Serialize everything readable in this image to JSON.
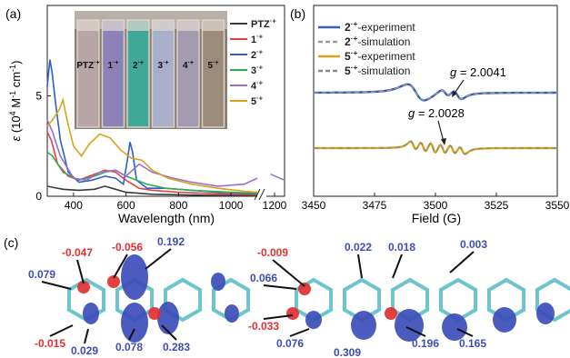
{
  "panels": {
    "a": {
      "label": "(a)",
      "chart_data": {
        "type": "line",
        "xlabel": "Wavelength (nm)",
        "ylabel": "ε (10⁴ M⁻¹ cm⁻¹)",
        "ylabel_parts": {
          "symbol": "ε",
          "rest": " (10",
          "sup1": "4",
          "mid": " M",
          "sup2": "-1",
          "cm": " cm",
          "sup3": "-1",
          "close": ")"
        },
        "xticks": [
          "400",
          "600",
          "800",
          "1000",
          "1200"
        ],
        "yticks": [
          "0",
          "5"
        ],
        "xlim": [
          300,
          1250
        ],
        "ylim": [
          0,
          9.5
        ],
        "axis_break": "after 1100",
        "legend": "top-right",
        "series": [
          {
            "name": "PTZ",
            "color": "#3a3a3a",
            "points": [
              [
                300,
                0.5
              ],
              [
                320,
                0.45
              ],
              [
                360,
                0.35
              ],
              [
                420,
                0.3
              ],
              [
                480,
                0.35
              ],
              [
                520,
                0.5
              ],
              [
                560,
                0.35
              ],
              [
                600,
                0.2
              ],
              [
                700,
                0.1
              ],
              [
                900,
                0.05
              ],
              [
                1100,
                0.03
              ],
              [
                1250,
                0.02
              ]
            ]
          },
          {
            "name": "1",
            "color": "#e84040",
            "points": [
              [
                300,
                3.2
              ],
              [
                315,
                2.8
              ],
              [
                340,
                1.6
              ],
              [
                380,
                1.0
              ],
              [
                420,
                0.8
              ],
              [
                460,
                1.0
              ],
              [
                520,
                1.3
              ],
              [
                560,
                1.2
              ],
              [
                600,
                0.8
              ],
              [
                650,
                0.4
              ],
              [
                700,
                0.3
              ],
              [
                800,
                0.2
              ],
              [
                1000,
                0.1
              ],
              [
                1100,
                0.08
              ],
              [
                1250,
                0.05
              ]
            ]
          },
          {
            "name": "2",
            "color": "#2c5fc9",
            "points": [
              [
                300,
                5.5
              ],
              [
                310,
                6.8
              ],
              [
                318,
                6.2
              ],
              [
                330,
                4.8
              ],
              [
                350,
                2.8
              ],
              [
                380,
                1.2
              ],
              [
                420,
                0.7
              ],
              [
                470,
                0.8
              ],
              [
                520,
                1.0
              ],
              [
                560,
                0.9
              ],
              [
                590,
                0.6
              ],
              [
                605,
                1.8
              ],
              [
                615,
                2.7
              ],
              [
                625,
                2.2
              ],
              [
                640,
                0.8
              ],
              [
                680,
                0.4
              ],
              [
                750,
                0.4
              ],
              [
                850,
                0.3
              ],
              [
                950,
                0.2
              ],
              [
                1050,
                0.15
              ],
              [
                1100,
                0.12
              ],
              [
                1250,
                0.1
              ]
            ]
          },
          {
            "name": "3",
            "color": "#2fae5a",
            "points": [
              [
                300,
                2.2
              ],
              [
                320,
                2.0
              ],
              [
                360,
                1.2
              ],
              [
                420,
                0.8
              ],
              [
                480,
                1.0
              ],
              [
                520,
                1.2
              ],
              [
                560,
                1.3
              ],
              [
                600,
                1.0
              ],
              [
                640,
                0.8
              ],
              [
                680,
                0.6
              ],
              [
                750,
                0.4
              ],
              [
                850,
                0.3
              ],
              [
                1000,
                0.2
              ],
              [
                1100,
                0.15
              ],
              [
                1250,
                0.25
              ]
            ]
          },
          {
            "name": "4",
            "color": "#9b6cd0",
            "points": [
              [
                300,
                3.8
              ],
              [
                320,
                3.2
              ],
              [
                350,
                2.0
              ],
              [
                400,
                0.9
              ],
              [
                450,
                0.8
              ],
              [
                500,
                1.2
              ],
              [
                560,
                1.3
              ],
              [
                600,
                1.0
              ],
              [
                650,
                1.6
              ],
              [
                700,
                1.2
              ],
              [
                780,
                0.9
              ],
              [
                850,
                0.7
              ],
              [
                950,
                0.5
              ],
              [
                1050,
                0.6
              ],
              [
                1100,
                0.9
              ],
              [
                1180,
                1.1
              ],
              [
                1250,
                0.8
              ]
            ]
          },
          {
            "name": "5",
            "color": "#d9a21a",
            "points": [
              [
                300,
                3.5
              ],
              [
                320,
                3.8
              ],
              [
                345,
                4.3
              ],
              [
                360,
                4.8
              ],
              [
                375,
                3.8
              ],
              [
                400,
                2.5
              ],
              [
                430,
                2.0
              ],
              [
                460,
                2.6
              ],
              [
                500,
                3.1
              ],
              [
                540,
                2.9
              ],
              [
                580,
                2.3
              ],
              [
                620,
                1.9
              ],
              [
                660,
                1.8
              ],
              [
                700,
                1.3
              ],
              [
                760,
                0.9
              ],
              [
                850,
                0.6
              ],
              [
                950,
                0.4
              ],
              [
                1050,
                0.25
              ],
              [
                1100,
                0.2
              ],
              [
                1250,
                0.15
              ]
            ]
          }
        ]
      },
      "legend_entries": [
        {
          "base": "PTZ",
          "sup": "·+"
        },
        {
          "base": "1",
          "sup": "·+"
        },
        {
          "base": "2",
          "sup": "·+"
        },
        {
          "base": "3",
          "sup": "·+"
        },
        {
          "base": "4",
          "sup": "·+"
        },
        {
          "base": "5",
          "sup": "·+"
        }
      ],
      "inset_labels": [
        {
          "base": "PTZ",
          "sup": "·+",
          "color": "#b8a5a8"
        },
        {
          "base": "1",
          "sup": "·+",
          "color": "#8d82b8"
        },
        {
          "base": "2",
          "sup": "·+",
          "color": "#3fa896"
        },
        {
          "base": "3",
          "sup": "·+",
          "color": "#a9aec9"
        },
        {
          "base": "4",
          "sup": "·+",
          "color": "#a49bb0"
        },
        {
          "base": "5",
          "sup": "·+",
          "color": "#9a8c78"
        }
      ]
    },
    "b": {
      "label": "(b)",
      "chart_data": {
        "type": "line",
        "xlabel": "Field (G)",
        "xticks": [
          "3450",
          "3475",
          "3500",
          "3525",
          "3550"
        ],
        "xlim": [
          3450,
          3550
        ],
        "legend": "top-left",
        "annotations": [
          {
            "prefix": "g",
            "value": " = 2.0041"
          },
          {
            "prefix": "g",
            "value": " = 2.0028"
          }
        ],
        "series": [
          {
            "name": "2-experiment",
            "color": "#3a5fb5"
          },
          {
            "name": "2-simulation",
            "color": "#9a9a9a",
            "dashed": true
          },
          {
            "name": "5-experiment",
            "color": "#d9a21a"
          },
          {
            "name": "5-simulation",
            "color": "#8a8a8a",
            "dashed": true
          }
        ]
      },
      "legend_entries": [
        {
          "base": "2",
          "sup": "·+",
          "suffix": "-experiment"
        },
        {
          "base": "2",
          "sup": "·+",
          "suffix": "-simulation"
        },
        {
          "base": "5",
          "sup": "·+",
          "suffix": "-experiment"
        },
        {
          "base": "5",
          "sup": "·+",
          "suffix": "-simulation"
        }
      ]
    },
    "c": {
      "label": "(c)",
      "colors": {
        "positive": "#3c4db8",
        "negative": "#e03030"
      },
      "left_spin_values": [
        {
          "text": "-0.047",
          "sign": "neg"
        },
        {
          "text": "-0.056",
          "sign": "neg"
        },
        {
          "text": "0.192",
          "sign": "pos"
        },
        {
          "text": "0.079",
          "sign": "pos"
        },
        {
          "text": "-0.015",
          "sign": "neg"
        },
        {
          "text": "0.029",
          "sign": "pos"
        },
        {
          "text": "0.078",
          "sign": "pos"
        },
        {
          "text": "0.283",
          "sign": "pos"
        }
      ],
      "right_spin_values": [
        {
          "text": "-0.009",
          "sign": "neg"
        },
        {
          "text": "0.022",
          "sign": "pos"
        },
        {
          "text": "0.018",
          "sign": "pos"
        },
        {
          "text": "0.003",
          "sign": "pos"
        },
        {
          "text": "0.066",
          "sign": "pos"
        },
        {
          "text": "-0.033",
          "sign": "neg"
        },
        {
          "text": "0.076",
          "sign": "pos"
        },
        {
          "text": "0.309",
          "sign": "pos"
        },
        {
          "text": "0.196",
          "sign": "pos"
        },
        {
          "text": "0.165",
          "sign": "pos"
        }
      ]
    }
  }
}
